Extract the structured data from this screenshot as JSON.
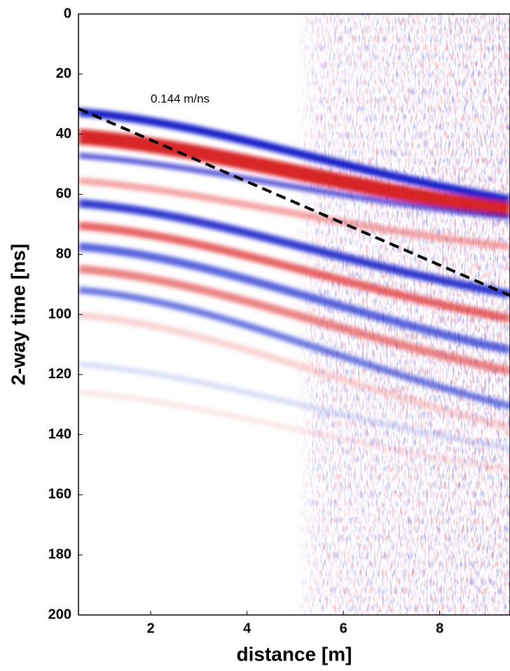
{
  "chart_data": {
    "type": "line",
    "annotation": "0.144 m/ns",
    "x_label": "distance [m]",
    "y_label": "2-way time [ns]",
    "xlim": [
      0.5,
      9.46
    ],
    "xticks": [
      2,
      4,
      6,
      8
    ],
    "ylim": [
      0,
      200
    ],
    "yticks": [
      0,
      20,
      40,
      60,
      80,
      100,
      120,
      140,
      160,
      180,
      200
    ],
    "y_inverted": true,
    "series": [
      {
        "color": "#000000",
        "dashed": true,
        "x": [
          0.5,
          9.46
        ],
        "values": [
          31.5,
          93.7
        ]
      }
    ]
  }
}
